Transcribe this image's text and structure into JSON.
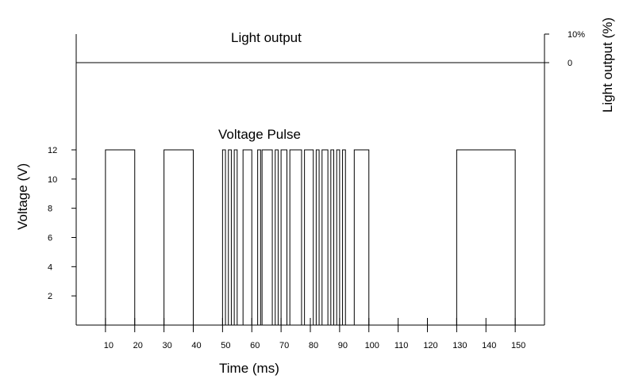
{
  "chart_data": [
    {
      "type": "line",
      "step": true,
      "title": "",
      "xlabel": "Time (ms)",
      "ylabel": "Voltage (V)",
      "xlim": [
        0,
        160
      ],
      "ylim": [
        0,
        12
      ],
      "x_ticks": [
        10,
        20,
        30,
        40,
        50,
        60,
        70,
        80,
        90,
        100,
        110,
        120,
        130,
        140,
        150
      ],
      "y_ticks": [
        2,
        4,
        6,
        8,
        10,
        12
      ],
      "series": [
        {
          "name": "Voltage Pulse",
          "pulse_amplitude": 12,
          "pulses": [
            [
              10,
              20
            ],
            [
              30,
              40
            ],
            [
              50,
              51
            ],
            [
              52,
              53
            ],
            [
              54,
              55
            ],
            [
              57,
              60
            ],
            [
              62,
              63
            ],
            [
              63.5,
              67
            ],
            [
              68,
              69
            ],
            [
              70,
              72
            ],
            [
              73,
              77
            ],
            [
              78,
              81
            ],
            [
              82,
              83
            ],
            [
              84,
              86
            ],
            [
              87,
              88
            ],
            [
              89,
              90
            ],
            [
              91,
              92
            ],
            [
              95,
              100
            ],
            [
              130,
              150
            ]
          ]
        }
      ]
    },
    {
      "type": "line",
      "title": "",
      "ylabel": "Light output (%)",
      "y_ticks": [
        "10%",
        "0"
      ],
      "series": [
        {
          "name": "Light output",
          "x": [
            0,
            160
          ],
          "values": [
            0,
            0
          ]
        }
      ]
    }
  ],
  "labels": {
    "voltage_series": "Voltage Pulse",
    "light_series": "Light output",
    "x_axis": "Time (ms)",
    "y_axis_left": "Voltage (V)",
    "y_axis_right": "Light output (%)",
    "right_tick_top": "10%",
    "right_tick_zero": "0"
  }
}
